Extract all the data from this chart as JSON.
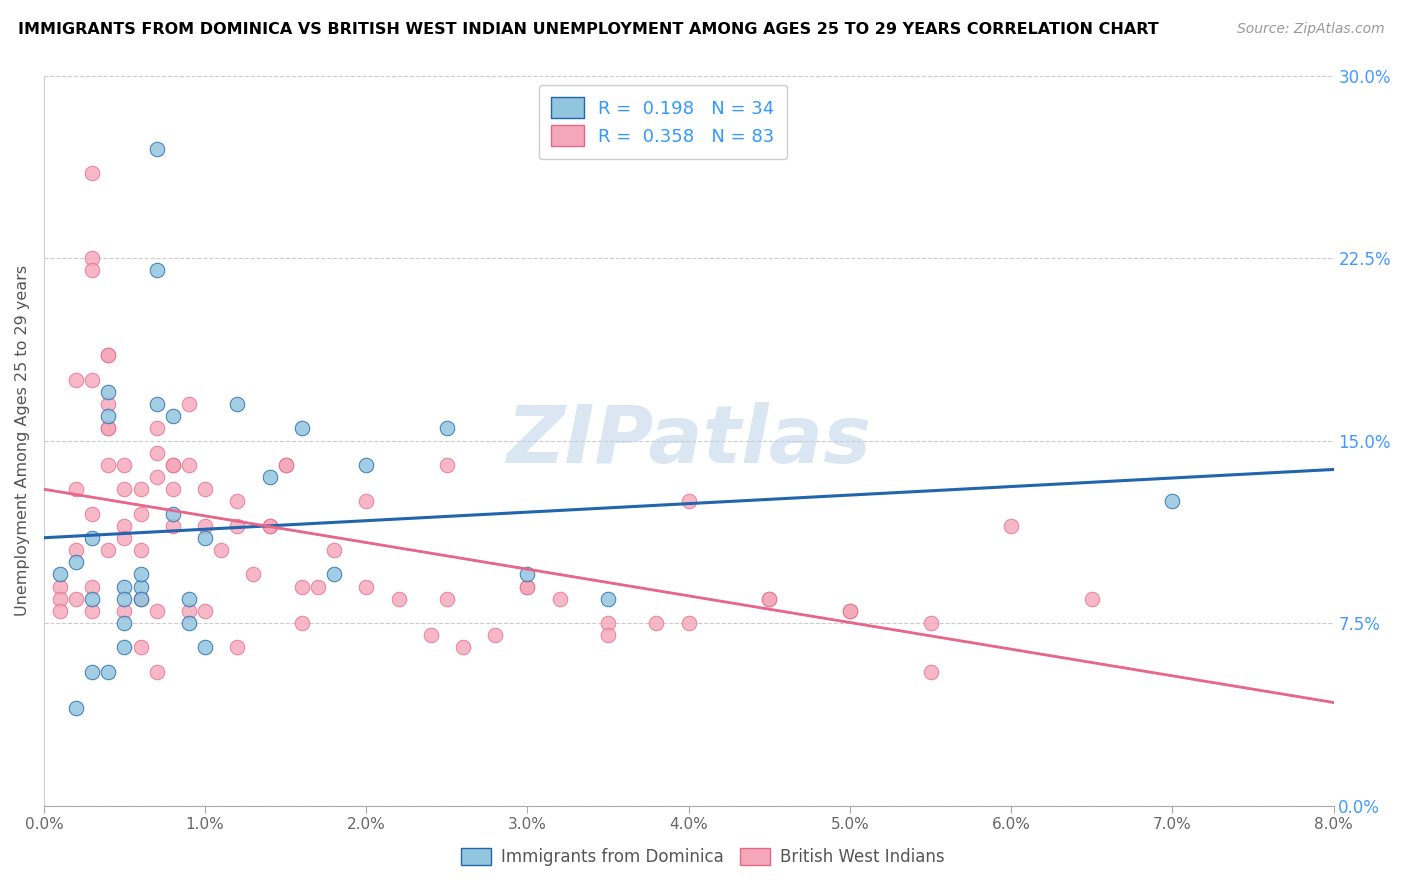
{
  "title": "IMMIGRANTS FROM DOMINICA VS BRITISH WEST INDIAN UNEMPLOYMENT AMONG AGES 25 TO 29 YEARS CORRELATION CHART",
  "source": "Source: ZipAtlas.com",
  "ylabel": "Unemployment Among Ages 25 to 29 years",
  "xlim": [
    0.0,
    0.08
  ],
  "ylim": [
    0.0,
    0.3
  ],
  "xticks": [
    0.0,
    0.01,
    0.02,
    0.03,
    0.04,
    0.05,
    0.06,
    0.07,
    0.08
  ],
  "xticklabels": [
    "0.0%",
    "1.0%",
    "2.0%",
    "3.0%",
    "4.0%",
    "5.0%",
    "6.0%",
    "7.0%",
    "8.0%"
  ],
  "yticks_right": [
    0.0,
    0.075,
    0.15,
    0.225,
    0.3
  ],
  "yticklabels_right": [
    "0.0%",
    "7.5%",
    "15.0%",
    "22.5%",
    "30.0%"
  ],
  "blue_R": 0.198,
  "blue_N": 34,
  "pink_R": 0.358,
  "pink_N": 83,
  "blue_color": "#92c5de",
  "pink_color": "#f4a7b9",
  "blue_line_color": "#2166ac",
  "pink_line_color": "#e8668a",
  "legend_label_blue": "Immigrants from Dominica",
  "legend_label_pink": "British West Indians",
  "watermark": "ZIPatlas",
  "blue_x": [
    0.001,
    0.002,
    0.003,
    0.003,
    0.004,
    0.004,
    0.005,
    0.005,
    0.005,
    0.006,
    0.006,
    0.006,
    0.007,
    0.007,
    0.008,
    0.008,
    0.009,
    0.009,
    0.01,
    0.01,
    0.012,
    0.014,
    0.016,
    0.018,
    0.02,
    0.025,
    0.03,
    0.035,
    0.07,
    0.003,
    0.004,
    0.005,
    0.007,
    0.002
  ],
  "blue_y": [
    0.095,
    0.1,
    0.11,
    0.085,
    0.17,
    0.16,
    0.09,
    0.085,
    0.075,
    0.09,
    0.095,
    0.085,
    0.27,
    0.165,
    0.16,
    0.12,
    0.085,
    0.075,
    0.065,
    0.11,
    0.165,
    0.135,
    0.155,
    0.095,
    0.14,
    0.155,
    0.095,
    0.085,
    0.125,
    0.055,
    0.055,
    0.065,
    0.22,
    0.04
  ],
  "pink_x": [
    0.001,
    0.001,
    0.001,
    0.002,
    0.002,
    0.002,
    0.002,
    0.003,
    0.003,
    0.003,
    0.003,
    0.003,
    0.003,
    0.004,
    0.004,
    0.004,
    0.004,
    0.004,
    0.005,
    0.005,
    0.005,
    0.005,
    0.006,
    0.006,
    0.006,
    0.006,
    0.007,
    0.007,
    0.007,
    0.007,
    0.008,
    0.008,
    0.008,
    0.009,
    0.009,
    0.01,
    0.01,
    0.011,
    0.012,
    0.012,
    0.013,
    0.014,
    0.015,
    0.016,
    0.017,
    0.018,
    0.02,
    0.022,
    0.024,
    0.025,
    0.026,
    0.028,
    0.03,
    0.032,
    0.035,
    0.038,
    0.04,
    0.045,
    0.05,
    0.055,
    0.003,
    0.004,
    0.004,
    0.005,
    0.006,
    0.007,
    0.008,
    0.009,
    0.01,
    0.012,
    0.014,
    0.015,
    0.016,
    0.02,
    0.025,
    0.03,
    0.035,
    0.04,
    0.045,
    0.05,
    0.055,
    0.06,
    0.065
  ],
  "pink_y": [
    0.09,
    0.085,
    0.08,
    0.175,
    0.13,
    0.105,
    0.085,
    0.225,
    0.22,
    0.175,
    0.12,
    0.09,
    0.08,
    0.185,
    0.165,
    0.155,
    0.14,
    0.105,
    0.14,
    0.13,
    0.115,
    0.08,
    0.13,
    0.12,
    0.105,
    0.085,
    0.155,
    0.145,
    0.135,
    0.08,
    0.14,
    0.13,
    0.115,
    0.165,
    0.14,
    0.13,
    0.08,
    0.105,
    0.125,
    0.065,
    0.095,
    0.115,
    0.14,
    0.075,
    0.09,
    0.105,
    0.09,
    0.085,
    0.07,
    0.085,
    0.065,
    0.07,
    0.09,
    0.085,
    0.075,
    0.075,
    0.075,
    0.085,
    0.08,
    0.055,
    0.26,
    0.185,
    0.155,
    0.11,
    0.065,
    0.055,
    0.14,
    0.08,
    0.115,
    0.115,
    0.115,
    0.14,
    0.09,
    0.125,
    0.14,
    0.09,
    0.07,
    0.125,
    0.085,
    0.08,
    0.075,
    0.115,
    0.085
  ]
}
